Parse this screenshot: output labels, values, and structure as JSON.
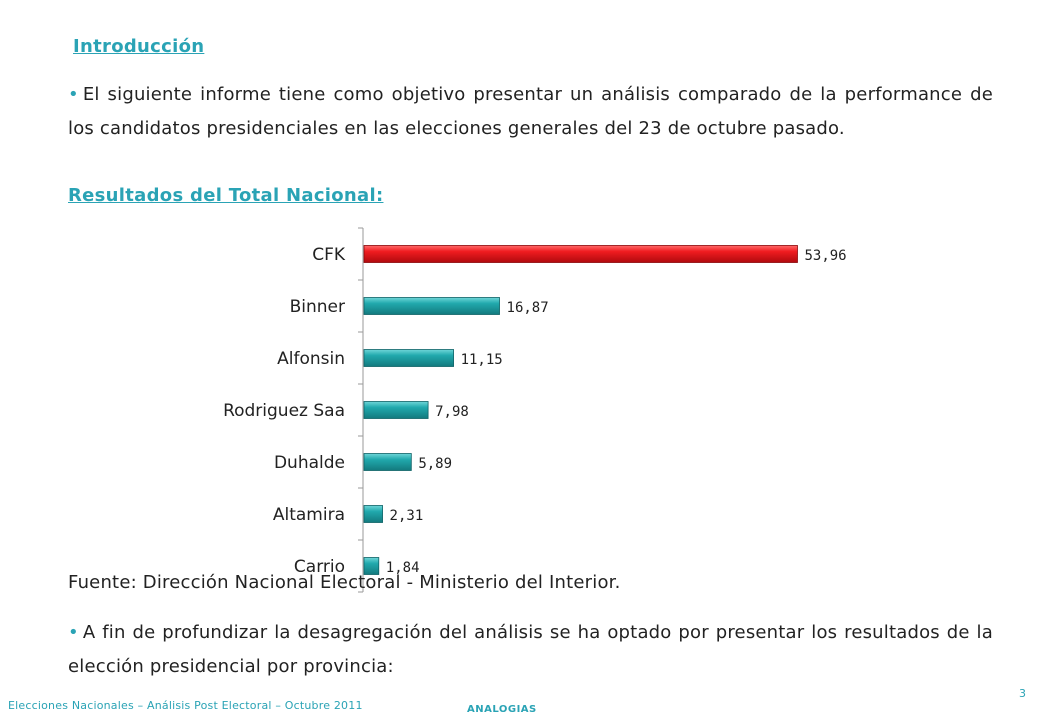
{
  "page": {
    "heading": "Introducción",
    "intro": "El siguiente informe tiene como objetivo presentar un análisis comparado de la performance de los candidatos presidenciales en las elecciones generales del 23 de octubre pasado.",
    "subheading": "Resultados del Total Nacional:",
    "source": "Fuente: Dirección Nacional Electoral - Ministerio del Interior.",
    "outro": "A fin de profundizar la desagregación del análisis se ha optado por presentar los resultados de la elección presidencial por provincia:",
    "bullet": "•"
  },
  "footer": {
    "title": "Elecciones Nacionales – Análisis Post Electoral – Octubre 2011",
    "brand": "ANALOGIAS",
    "page_number": "3"
  },
  "colors": {
    "accent": "#2aa3b5",
    "highlight_bar": "#e8141b",
    "bar": "#1fa3a8"
  },
  "chart_data": {
    "type": "bar",
    "orientation": "horizontal",
    "categories": [
      "CFK",
      "Binner",
      "Alfonsin",
      "Rodriguez Saa",
      "Duhalde",
      "Altamira",
      "Carrio"
    ],
    "values": [
      53.96,
      16.87,
      11.15,
      7.98,
      5.89,
      2.31,
      1.84
    ],
    "value_labels": [
      "53,96",
      "16,87",
      "11,15",
      "7,98",
      "5,89",
      "2,31",
      "1,84"
    ],
    "highlight_index": 0,
    "xlim": [
      0,
      60
    ],
    "title": "",
    "xlabel": "",
    "ylabel": ""
  }
}
